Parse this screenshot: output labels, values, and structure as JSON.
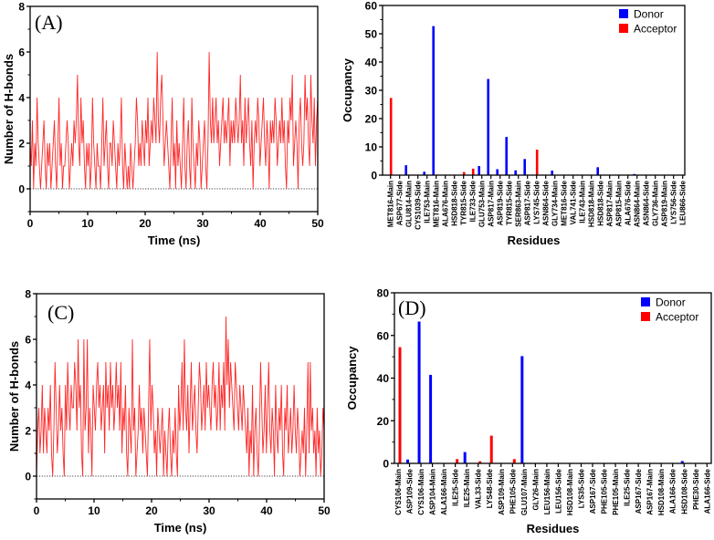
{
  "chart_data": [
    {
      "type": "line",
      "panel_label": "(A)",
      "xlabel": "Time (ns)",
      "ylabel": "Number of H-bonds",
      "xlim": [
        0,
        50
      ],
      "ylim": [
        -1,
        8
      ],
      "xticks": [
        0,
        10,
        20,
        30,
        40,
        50
      ],
      "yticks": [
        0,
        2,
        4,
        6,
        8
      ],
      "grid": false,
      "series": [
        {
          "name": "H-bonds",
          "color": "#ff0000",
          "values": [
            2,
            1,
            3,
            0,
            2,
            1,
            4,
            2,
            1,
            0,
            1,
            2,
            3,
            1,
            0,
            2,
            1,
            2,
            0,
            1,
            2,
            3,
            1,
            0,
            2,
            4,
            1,
            2,
            0,
            1,
            1,
            2,
            3,
            2,
            0,
            1,
            2,
            1,
            3,
            2,
            3,
            5,
            2,
            1,
            4,
            2,
            3,
            1,
            0,
            2,
            1,
            2,
            0,
            1,
            4,
            2,
            1,
            0,
            2,
            1,
            1,
            0,
            2,
            4,
            1,
            2,
            3,
            1,
            0,
            2,
            2,
            1,
            3,
            2,
            1,
            0,
            2,
            1,
            2,
            4,
            1,
            0,
            2,
            1,
            0,
            1,
            0,
            2,
            1,
            0,
            1,
            2,
            4,
            3,
            1,
            2,
            1,
            3,
            2,
            1,
            3,
            2,
            4,
            1,
            2,
            3,
            2,
            4,
            3,
            2,
            6,
            3,
            2,
            4,
            5,
            3,
            1,
            2,
            3,
            2,
            1,
            0,
            2,
            4,
            1,
            2,
            0,
            3,
            1,
            2,
            1,
            0,
            2,
            4,
            1,
            0,
            2,
            3,
            1,
            0,
            4,
            2,
            1,
            0,
            2,
            1,
            3,
            2,
            0,
            1,
            2,
            3,
            1,
            0,
            2,
            6,
            3,
            2,
            4,
            2,
            3,
            4,
            2,
            3,
            1,
            2,
            3,
            4,
            2,
            3,
            2,
            3,
            4,
            1,
            3,
            2,
            3,
            2,
            4,
            3,
            2,
            3,
            5,
            2,
            3,
            1,
            4,
            2,
            3,
            4,
            2,
            1,
            3,
            0,
            2,
            3,
            2,
            4,
            3,
            1,
            2,
            3,
            4,
            2,
            1,
            3,
            2,
            0,
            3,
            2,
            3,
            2,
            4,
            3,
            1,
            2,
            3,
            2,
            4,
            2,
            3,
            1,
            0,
            3,
            2,
            4,
            3,
            5,
            1,
            2,
            3,
            2,
            0,
            3,
            4,
            2,
            1,
            2,
            5,
            3,
            4,
            2,
            1,
            5,
            3,
            2,
            4,
            1,
            3,
            4
          ]
        }
      ]
    },
    {
      "type": "bar",
      "panel_label": "",
      "xlabel": "Residues",
      "ylabel": "Occupancy",
      "ylim": [
        0,
        60
      ],
      "yticks": [
        0,
        10,
        20,
        30,
        40,
        50,
        60
      ],
      "legend": "top-right",
      "categories": [
        "MET816-Main",
        "ASP677-Side",
        "GLU814-Main",
        "CYS1039-Side",
        "ILE753-Main",
        "MET816-Main",
        "ALA676-Main",
        "HSD818-Side",
        "TYR815-Side",
        "ILE733-Side",
        "GLU753-Main",
        "ASP817-Main",
        "ASP819-Side",
        "TYR815-Side",
        "SER863-Main",
        "ASP817-Side",
        "LYS745-Side",
        "ASN864-Side",
        "GLY734-Main",
        "MET816-Side",
        "VAL741-Side",
        "ILE743-Main",
        "HSD818-Main",
        "HSD818-Side",
        "ASP817-Main",
        "ASP815-Main",
        "ALA676-Side",
        "ASN864-Main",
        "ASN864-Side",
        "GLY736-Main",
        "ASP819-Main",
        "LYS756-Side",
        "LEU866-Side"
      ],
      "series": [
        {
          "name": "Donor",
          "color": "#0000ff",
          "values": [
            0,
            0,
            3.5,
            0,
            1.2,
            52.7,
            0,
            0,
            0,
            0,
            3.2,
            34,
            2.1,
            13.5,
            1.7,
            5.7,
            0,
            0,
            1.6,
            0,
            0,
            0,
            0,
            2.8,
            0,
            0,
            0,
            0.4,
            0,
            0,
            0,
            0,
            0
          ]
        },
        {
          "name": "Acceptor",
          "color": "#ff0000",
          "values": [
            27.3,
            0,
            0,
            0,
            0,
            0,
            0,
            0,
            1.1,
            2.3,
            0,
            0,
            0,
            0,
            0,
            0,
            9.0,
            0,
            0,
            0,
            0,
            0,
            0,
            0,
            0,
            0,
            0,
            0,
            0,
            0,
            0,
            0,
            0
          ]
        }
      ]
    },
    {
      "type": "line",
      "panel_label": "(C)",
      "xlabel": "Time (ns)",
      "ylabel": "Number of H-bonds",
      "xlim": [
        0,
        50
      ],
      "ylim": [
        -1,
        8
      ],
      "xticks": [
        0,
        10,
        20,
        30,
        40,
        50
      ],
      "yticks": [
        0,
        2,
        4,
        6,
        8
      ],
      "grid": false,
      "series": [
        {
          "name": "H-bonds",
          "color": "#ff0000",
          "values": [
            0,
            2,
            3,
            1,
            2,
            4,
            1,
            3,
            2,
            1,
            3,
            2,
            4,
            1,
            0,
            2,
            5,
            3,
            1,
            2,
            4,
            2,
            3,
            1,
            0,
            4,
            2,
            5,
            3,
            2,
            4,
            3,
            3,
            5,
            4,
            2,
            6,
            3,
            4,
            1,
            0,
            6,
            2,
            3,
            6,
            1,
            3,
            2,
            0,
            4,
            3,
            2,
            4,
            5,
            3,
            4,
            2,
            3,
            4,
            1,
            5,
            3,
            4,
            2,
            5,
            3,
            4,
            2,
            3,
            5,
            3,
            4,
            2,
            5,
            1,
            3,
            2,
            4,
            1,
            0,
            3,
            2,
            1,
            6,
            2,
            3,
            0,
            1,
            2,
            4,
            2,
            3,
            1,
            3,
            2,
            1,
            0,
            3,
            6,
            2,
            4,
            3,
            1,
            2,
            0,
            3,
            2,
            1,
            2,
            3,
            0,
            2,
            1,
            0,
            2,
            3,
            1,
            0,
            2,
            1,
            3,
            1,
            0,
            4,
            2,
            3,
            5,
            2,
            6,
            3,
            2,
            4,
            1,
            3,
            5,
            2,
            3,
            4,
            2,
            1,
            3,
            5,
            4,
            2,
            3,
            4,
            2,
            5,
            3,
            4,
            3,
            2,
            4,
            5,
            3,
            4,
            2,
            3,
            5,
            2,
            4,
            3,
            5,
            2,
            7,
            4,
            6,
            3,
            5,
            4,
            3,
            2,
            5,
            4,
            3,
            2,
            4,
            3,
            2,
            4,
            3,
            2,
            1,
            3,
            0,
            2,
            1,
            4,
            0,
            2,
            3,
            1,
            0,
            2,
            5,
            3,
            1,
            2,
            4,
            1,
            3,
            5,
            2,
            1,
            3,
            2,
            0,
            4,
            2,
            1,
            3,
            2,
            4,
            1,
            0,
            3,
            2,
            4,
            1,
            2,
            3,
            1,
            2,
            4,
            2,
            1,
            3,
            2,
            0,
            1,
            2,
            1,
            3,
            0,
            2,
            5,
            1,
            5,
            2,
            3,
            1,
            2,
            0,
            3,
            1,
            2,
            0,
            1,
            3,
            2
          ]
        }
      ]
    },
    {
      "type": "bar",
      "panel_label": "(D)",
      "xlabel": "Residues",
      "ylabel": "Occupancy",
      "ylim": [
        0,
        80
      ],
      "yticks": [
        0,
        20,
        40,
        60,
        80
      ],
      "legend": "top-right",
      "categories": [
        "CYS106-Main",
        "ASP109-Side",
        "CYS106-Main",
        "ASP104-Main",
        "ALA166-Main",
        "ILE25-Side",
        "ILE25-Main",
        "VAL33-Side",
        "LYS48-Side",
        "ASP109-Main",
        "PHE105-Side",
        "GLU107-Main",
        "GLY26-Main",
        "LEU156-Main",
        "LEU156-Side",
        "HSD108-Main",
        "LYS35-Side",
        "ASP167-Side",
        "PHE105-Side",
        "PHE105-Main",
        "ILE25-Side",
        "ASP167-Side",
        "ASP167-Main",
        "HSD108-Main",
        "ALA166-Side",
        "HSD108-Side",
        "PHE30-Side",
        "ALA166-Side"
      ],
      "series": [
        {
          "name": "Donor",
          "color": "#0000ff",
          "values": [
            0,
            1.8,
            66.5,
            41.5,
            0,
            0,
            5.3,
            0,
            0,
            0,
            0,
            50.3,
            0,
            0,
            0,
            0,
            0,
            0,
            0,
            0,
            0,
            0,
            0,
            0,
            0,
            1.1,
            0,
            0
          ]
        },
        {
          "name": "Acceptor",
          "color": "#ff0000",
          "values": [
            54.5,
            0,
            0,
            0,
            0,
            2.0,
            0,
            1.0,
            13.0,
            0,
            2.0,
            0,
            0,
            0,
            0,
            0,
            0,
            0,
            0,
            0,
            0,
            0,
            0,
            0,
            0,
            0,
            0,
            0
          ]
        }
      ]
    }
  ]
}
